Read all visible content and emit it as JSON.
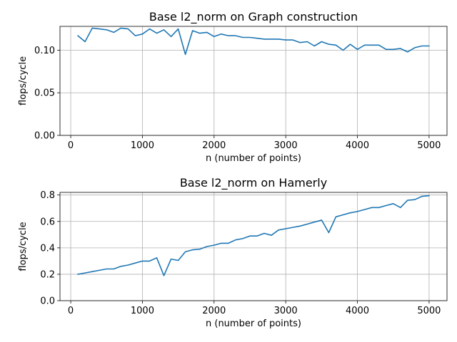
{
  "chart_data": [
    {
      "type": "line",
      "title": "Base l2_norm on Graph construction",
      "xlabel": "n (number of points)",
      "ylabel": "flops/cycle",
      "xlim": [
        -150,
        5250
      ],
      "ylim": [
        0.0,
        0.128
      ],
      "xticks": [
        0,
        1000,
        2000,
        3000,
        4000,
        5000
      ],
      "xtick_labels": [
        "0",
        "1000",
        "2000",
        "3000",
        "4000",
        "5000"
      ],
      "yticks": [
        0.0,
        0.05,
        0.1
      ],
      "ytick_labels": [
        "0.00",
        "0.05",
        "0.10"
      ],
      "grid": true,
      "color": "#1f77b4",
      "series": [
        {
          "x": [
            100,
            200,
            300,
            400,
            500,
            600,
            700,
            800,
            900,
            1000,
            1100,
            1200,
            1300,
            1400,
            1500,
            1600,
            1700,
            1800,
            1900,
            2000,
            2100,
            2200,
            2300,
            2400,
            2500,
            2600,
            2700,
            2800,
            2900,
            3000,
            3100,
            3200,
            3300,
            3400,
            3500,
            3600,
            3700,
            3800,
            3900,
            4000,
            4100,
            4200,
            4300,
            4400,
            4500,
            4600,
            4700,
            4800,
            4900,
            5000
          ],
          "values": [
            0.117,
            0.11,
            0.126,
            0.125,
            0.124,
            0.121,
            0.126,
            0.125,
            0.117,
            0.119,
            0.125,
            0.12,
            0.124,
            0.116,
            0.125,
            0.095,
            0.123,
            0.12,
            0.121,
            0.116,
            0.119,
            0.117,
            0.117,
            0.115,
            0.115,
            0.114,
            0.113,
            0.113,
            0.113,
            0.112,
            0.112,
            0.109,
            0.11,
            0.105,
            0.11,
            0.107,
            0.106,
            0.1,
            0.107,
            0.101,
            0.106,
            0.106,
            0.106,
            0.101,
            0.101,
            0.102,
            0.098,
            0.103,
            0.105,
            0.105
          ]
        }
      ]
    },
    {
      "type": "line",
      "title": "Base l2_norm on Hamerly",
      "xlabel": "n (number of points)",
      "ylabel": "flops/cycle",
      "xlim": [
        -150,
        5250
      ],
      "ylim": [
        0.0,
        0.82
      ],
      "xticks": [
        0,
        1000,
        2000,
        3000,
        4000,
        5000
      ],
      "xtick_labels": [
        "0",
        "1000",
        "2000",
        "3000",
        "4000",
        "5000"
      ],
      "yticks": [
        0.0,
        0.2,
        0.4,
        0.6,
        0.8
      ],
      "ytick_labels": [
        "0.0",
        "0.2",
        "0.4",
        "0.6",
        "0.8"
      ],
      "grid": true,
      "color": "#1f77b4",
      "series": [
        {
          "x": [
            100,
            200,
            300,
            400,
            500,
            600,
            700,
            800,
            900,
            1000,
            1100,
            1200,
            1300,
            1400,
            1500,
            1600,
            1700,
            1800,
            1900,
            2000,
            2100,
            2200,
            2300,
            2400,
            2500,
            2600,
            2700,
            2800,
            2900,
            3000,
            3100,
            3200,
            3300,
            3400,
            3500,
            3600,
            3700,
            3800,
            3900,
            4000,
            4100,
            4200,
            4300,
            4400,
            4500,
            4600,
            4700,
            4800,
            4900,
            5000
          ],
          "values": [
            0.2,
            0.21,
            0.22,
            0.23,
            0.24,
            0.24,
            0.26,
            0.27,
            0.285,
            0.3,
            0.3,
            0.325,
            0.19,
            0.315,
            0.305,
            0.37,
            0.385,
            0.39,
            0.41,
            0.42,
            0.435,
            0.435,
            0.46,
            0.47,
            0.49,
            0.49,
            0.51,
            0.495,
            0.535,
            0.545,
            0.555,
            0.565,
            0.58,
            0.595,
            0.61,
            0.515,
            0.635,
            0.65,
            0.665,
            0.675,
            0.69,
            0.705,
            0.705,
            0.72,
            0.735,
            0.705,
            0.76,
            0.765,
            0.79,
            0.795
          ]
        }
      ]
    }
  ]
}
